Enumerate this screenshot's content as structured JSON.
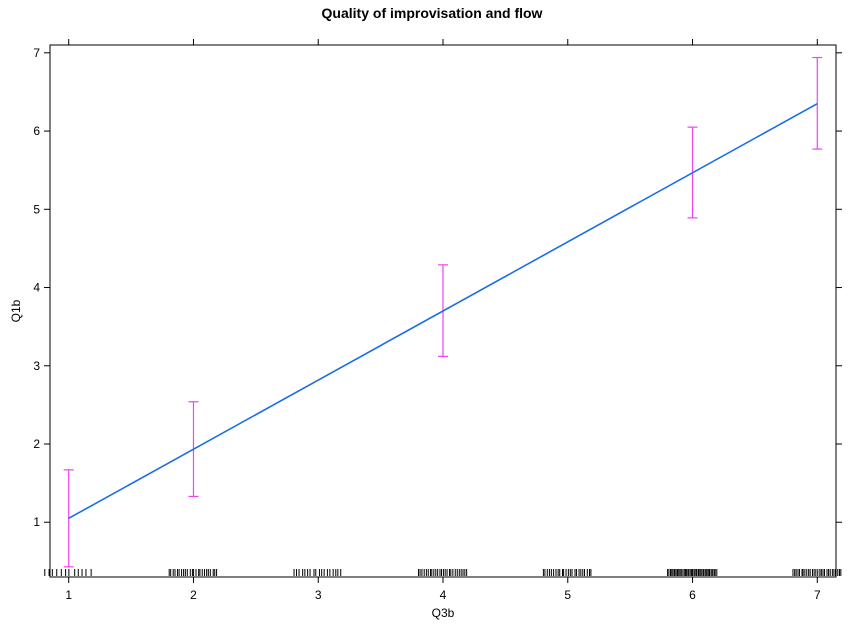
{
  "chart_data": {
    "type": "line",
    "title": "Quality of improvisation and flow",
    "xlabel": "Q3b",
    "ylabel": "Q1b",
    "xlim": [
      0.85,
      7.15
    ],
    "ylim": [
      0.3,
      7.1
    ],
    "x_ticks": [
      1,
      2,
      3,
      4,
      5,
      6,
      7
    ],
    "y_ticks": [
      1,
      2,
      3,
      4,
      5,
      6,
      7
    ],
    "grid": false,
    "series": [
      {
        "color": "#1a6ee6",
        "x": [
          1,
          7
        ],
        "y": [
          1.05,
          6.35
        ]
      }
    ],
    "error_bars": {
      "color": "#ee44ee",
      "x": [
        1,
        2,
        4,
        6,
        7
      ],
      "lower": [
        0.43,
        1.33,
        3.12,
        4.89,
        5.77
      ],
      "upper": [
        1.67,
        2.54,
        4.29,
        6.05,
        6.94
      ]
    },
    "rug": {
      "color": "#000000",
      "groups": [
        {
          "center": 1,
          "spread": 0.2,
          "count": 12
        },
        {
          "center": 2,
          "spread": 0.2,
          "count": 24
        },
        {
          "center": 3,
          "spread": 0.2,
          "count": 18
        },
        {
          "center": 4,
          "spread": 0.2,
          "count": 26
        },
        {
          "center": 5,
          "spread": 0.2,
          "count": 24
        },
        {
          "center": 6,
          "spread": 0.2,
          "count": 40
        },
        {
          "center": 7,
          "spread": 0.2,
          "count": 28
        }
      ]
    }
  }
}
